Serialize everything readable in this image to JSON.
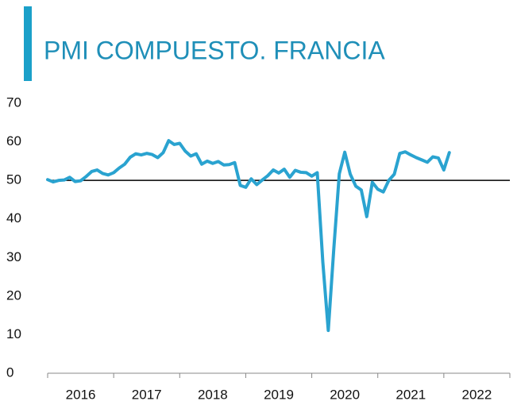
{
  "chart_data": {
    "type": "line",
    "title": "PMI COMPUESTO. FRANCIA",
    "x": [
      2016.0,
      2016.083,
      2016.167,
      2016.25,
      2016.333,
      2016.417,
      2016.5,
      2016.583,
      2016.667,
      2016.75,
      2016.833,
      2016.917,
      2017.0,
      2017.083,
      2017.167,
      2017.25,
      2017.333,
      2017.417,
      2017.5,
      2017.583,
      2017.667,
      2017.75,
      2017.833,
      2017.917,
      2018.0,
      2018.083,
      2018.167,
      2018.25,
      2018.333,
      2018.417,
      2018.5,
      2018.583,
      2018.667,
      2018.75,
      2018.833,
      2018.917,
      2019.0,
      2019.083,
      2019.167,
      2019.25,
      2019.333,
      2019.417,
      2019.5,
      2019.583,
      2019.667,
      2019.75,
      2019.833,
      2019.917,
      2020.0,
      2020.083,
      2020.167,
      2020.25,
      2020.333,
      2020.417,
      2020.5,
      2020.583,
      2020.667,
      2020.75,
      2020.833,
      2020.917,
      2021.0,
      2021.083,
      2021.167,
      2021.25,
      2021.333,
      2021.417,
      2021.5,
      2021.583,
      2021.667,
      2021.75,
      2021.833,
      2021.917,
      2022.0,
      2022.083
    ],
    "series": [
      {
        "color": "#2aa3d0",
        "values": [
          50.2,
          49.6,
          50.0,
          50.1,
          50.8,
          49.7,
          49.9,
          51.0,
          52.3,
          52.7,
          51.8,
          51.4,
          52.0,
          53.2,
          54.2,
          56.0,
          56.9,
          56.6,
          57.0,
          56.7,
          55.9,
          57.2,
          60.3,
          59.3,
          59.6,
          57.6,
          56.3,
          56.9,
          54.2,
          55.0,
          54.4,
          54.9,
          54.0,
          54.1,
          54.6,
          48.7,
          48.2,
          50.4,
          48.9,
          50.1,
          51.2,
          52.7,
          51.9,
          52.9,
          50.8,
          52.6,
          52.1,
          52.0,
          51.1,
          52.0,
          28.9,
          11.1,
          32.1,
          51.7,
          57.3,
          51.6,
          48.5,
          47.5,
          40.6,
          49.5,
          47.7,
          47.0,
          50.0,
          51.6,
          57.0,
          57.4,
          56.6,
          55.9,
          55.3,
          54.7,
          56.1,
          55.8,
          52.7,
          57.2
        ]
      }
    ],
    "xlim": [
      2016,
      2023
    ],
    "xticks": [
      2016,
      2017,
      2018,
      2019,
      2020,
      2021,
      2022,
      2023
    ],
    "x_labels": [
      "2016",
      "2017",
      "2018",
      "2019",
      "2020",
      "2021",
      "2022"
    ],
    "ylim": [
      0,
      70
    ],
    "yticks": [
      0,
      10,
      20,
      30,
      40,
      50,
      60,
      70
    ],
    "reference_line": 50,
    "accent_color": "#1ba0c9"
  }
}
